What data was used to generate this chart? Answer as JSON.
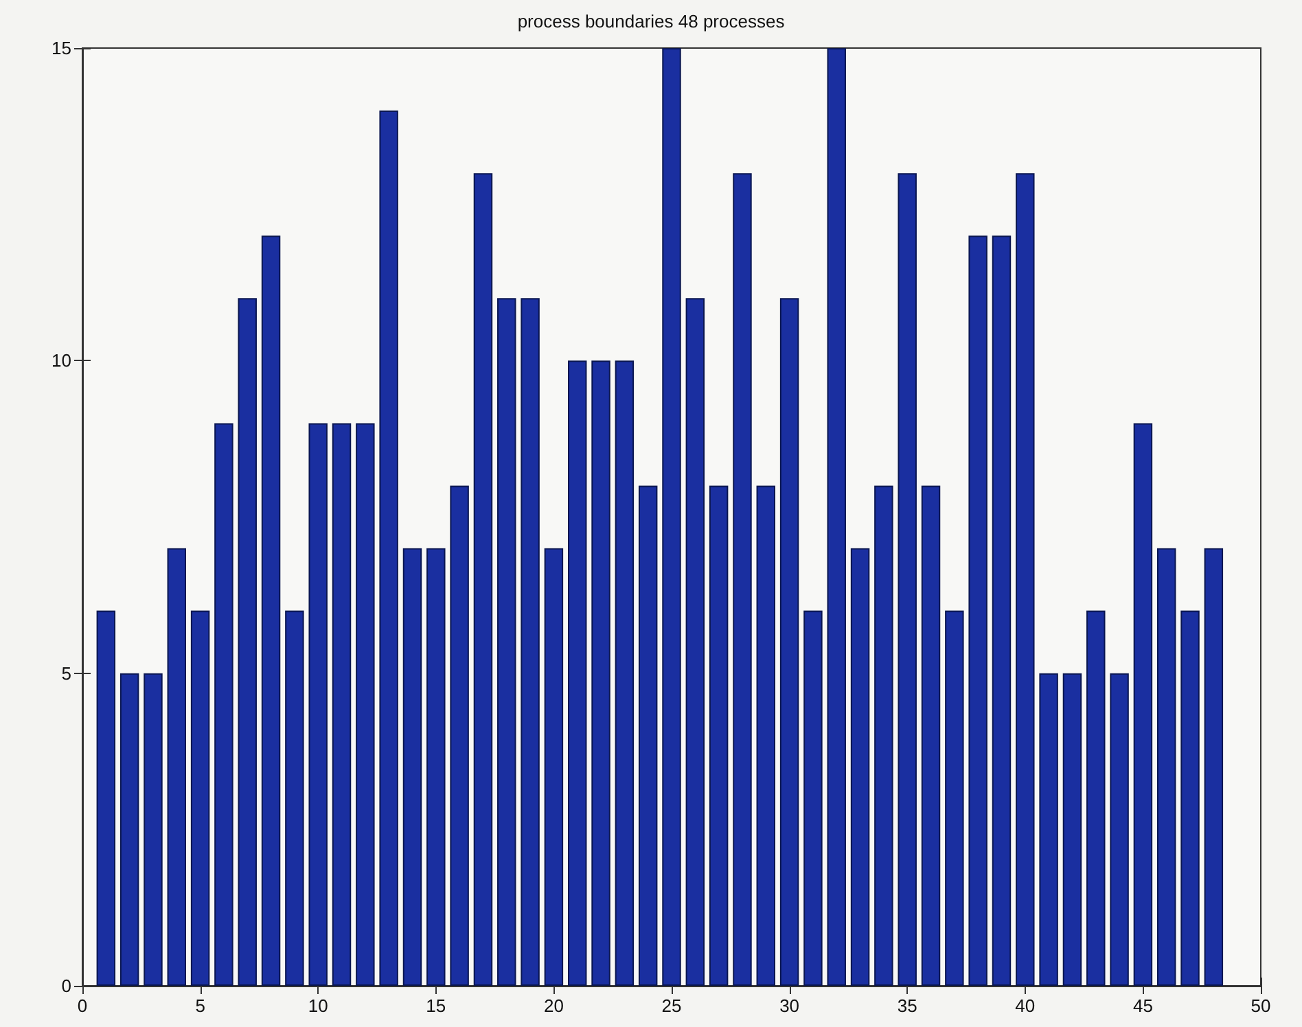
{
  "chart_data": {
    "type": "bar",
    "title": "process boundaries 48 processes",
    "x": [
      1,
      2,
      3,
      4,
      5,
      6,
      7,
      8,
      9,
      10,
      11,
      12,
      13,
      14,
      15,
      16,
      17,
      18,
      19,
      20,
      21,
      22,
      23,
      24,
      25,
      26,
      27,
      28,
      29,
      30,
      31,
      32,
      33,
      34,
      35,
      36,
      37,
      38,
      39,
      40,
      41,
      42,
      43,
      44,
      45,
      46,
      47,
      48
    ],
    "values": [
      6,
      5,
      5,
      7,
      6,
      9,
      11,
      12,
      6,
      9,
      9,
      9,
      14,
      7,
      7,
      8,
      13,
      11,
      11,
      7,
      10,
      10,
      10,
      8,
      15,
      11,
      8,
      13,
      8,
      11,
      6,
      15,
      7,
      8,
      13,
      8,
      6,
      12,
      12,
      13,
      5,
      5,
      6,
      5,
      9,
      7,
      6,
      7
    ],
    "color": "#1a2fa0",
    "xlim": [
      0,
      50
    ],
    "xticks": [
      0,
      5,
      10,
      15,
      20,
      25,
      30,
      35,
      40,
      45,
      50
    ],
    "ylim": [
      0,
      15
    ],
    "yticks": [
      0,
      5,
      10,
      15
    ]
  }
}
